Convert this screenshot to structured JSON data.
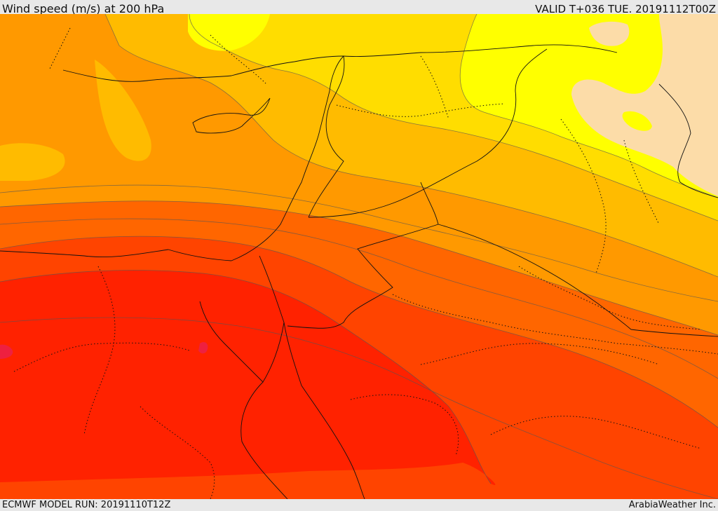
{
  "header": {
    "title": "Wind speed (m/s) at 200 hPa",
    "valid_time": "VALID T+036 TUE. 20191112T00Z"
  },
  "footer": {
    "model_run": "ECMWF MODEL RUN: 20191110T12Z",
    "credit": "ArabiaWeather Inc."
  },
  "palette": {
    "peach": "#fcdca8",
    "light_yellow": "#ffff00",
    "yellow": "#ffdd00",
    "amber": "#ffbb00",
    "orange": "#ff9900",
    "dark_orange": "#ff6600",
    "red_orange": "#ff4400",
    "red": "#ff2200",
    "crimson": "#ee2040"
  }
}
